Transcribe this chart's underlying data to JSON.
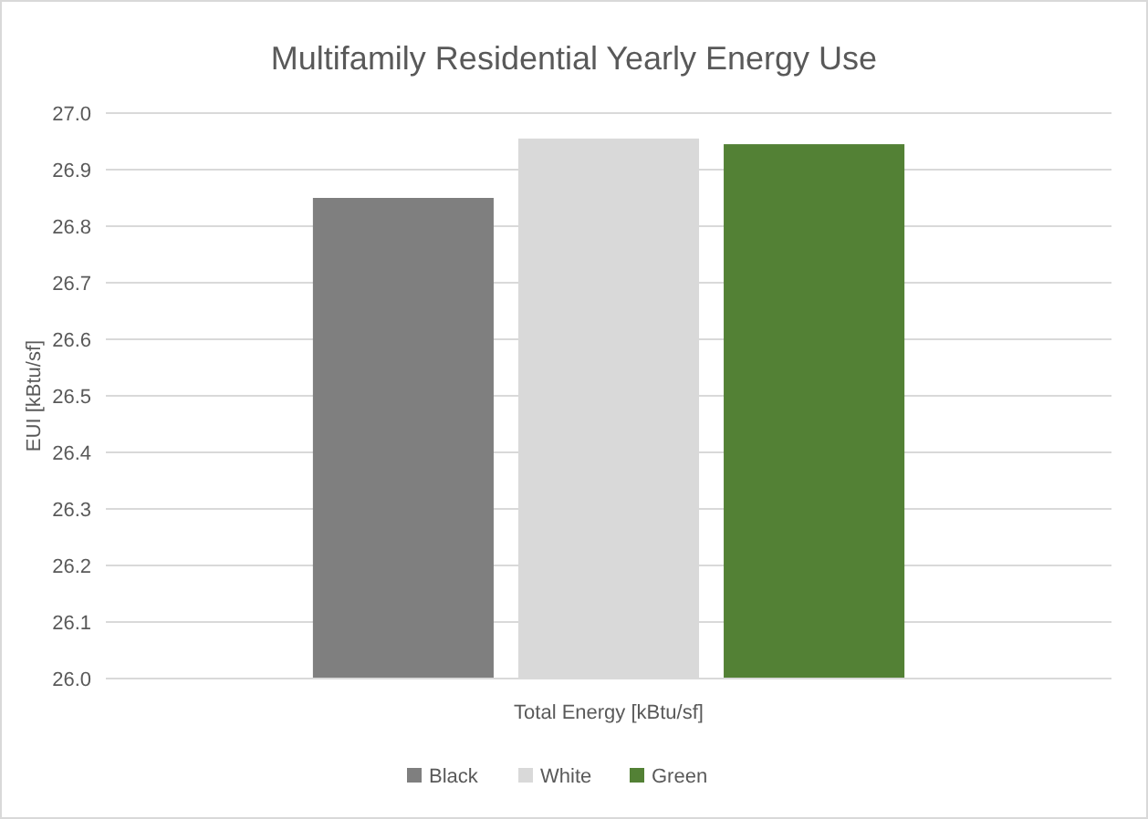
{
  "chart_data": {
    "type": "bar",
    "title": "Multifamily Residential Yearly Energy Use",
    "ylabel": "EUI  [kBtu/sf]",
    "categories": [
      "Total Energy [kBtu/sf]"
    ],
    "series": [
      {
        "name": "Black",
        "color": "#7f7f7f",
        "values": [
          26.85
        ]
      },
      {
        "name": "White",
        "color": "#d9d9d9",
        "values": [
          26.955
        ]
      },
      {
        "name": "Green",
        "color": "#538135",
        "values": [
          26.945
        ]
      }
    ],
    "ylim": [
      26.0,
      27.0
    ],
    "yticks": [
      {
        "value": 26.0,
        "label": "26.0"
      },
      {
        "value": 26.1,
        "label": "26.1"
      },
      {
        "value": 26.2,
        "label": "26.2"
      },
      {
        "value": 26.3,
        "label": "26.3"
      },
      {
        "value": 26.4,
        "label": "26.4"
      },
      {
        "value": 26.5,
        "label": "26.5"
      },
      {
        "value": 26.6,
        "label": "26.6"
      },
      {
        "value": 26.7,
        "label": "26.7"
      },
      {
        "value": 26.8,
        "label": "26.8"
      },
      {
        "value": 26.9,
        "label": "26.9"
      },
      {
        "value": 27.0,
        "label": "27.0"
      }
    ],
    "grid": "y",
    "legend": "bottom"
  }
}
